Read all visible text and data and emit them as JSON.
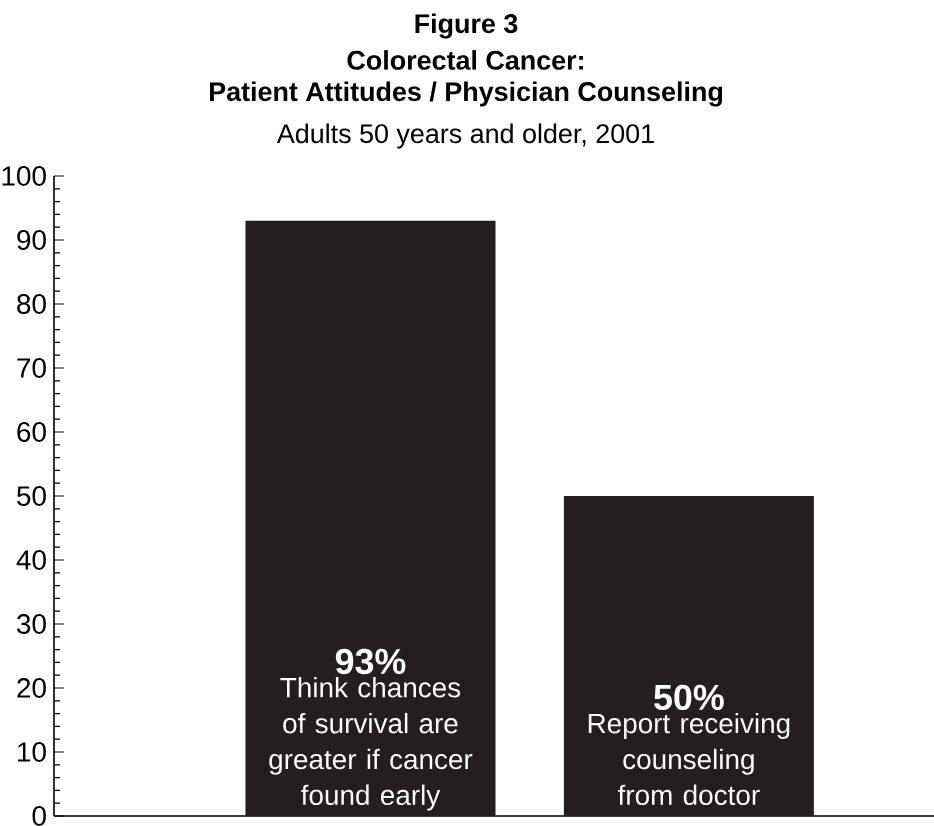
{
  "chart_data": {
    "type": "bar",
    "title": "Figure 3",
    "subtitle": "Adults 50 years and older, 2001",
    "annotations": [
      "Colorectal Cancer:",
      "Patient Attitudes / Physician Counseling"
    ],
    "categories": [
      "Think chances of survival are greater if cancer found early",
      "Report receiving counseling from doctor"
    ],
    "values": [
      93,
      50
    ],
    "value_labels": [
      "93%",
      "50%"
    ],
    "color": "#231f20",
    "ylim": [
      0,
      100
    ],
    "yticks": [
      0,
      10,
      20,
      30,
      40,
      50,
      60,
      70,
      80,
      90,
      100
    ],
    "grid": false
  }
}
